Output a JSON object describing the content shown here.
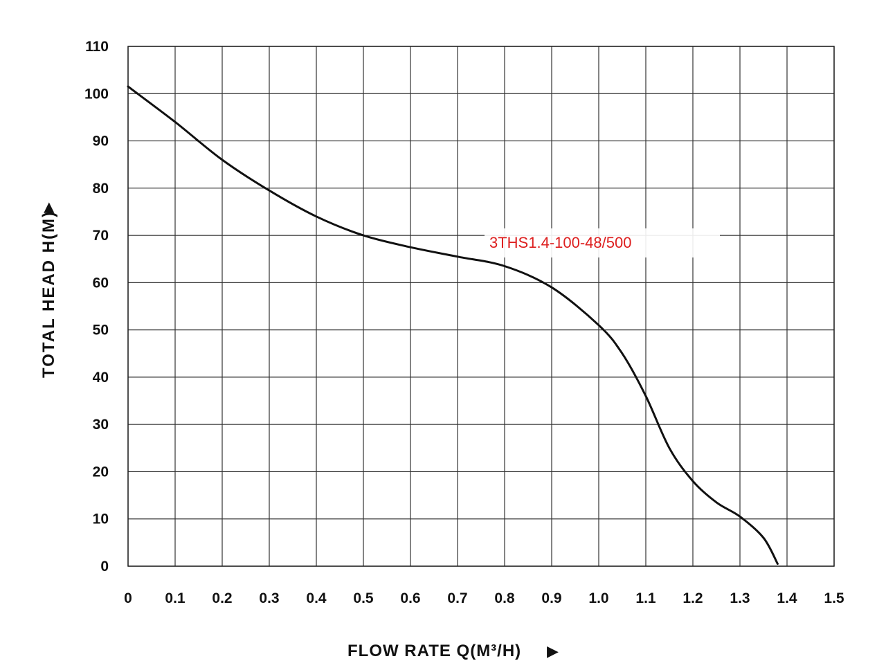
{
  "chart_data": {
    "type": "line",
    "title": "",
    "xlabel": "FLOW RATE Q(M³/H)",
    "ylabel": "TOTAL HEAD H(M)",
    "xlim": [
      0,
      1.5
    ],
    "ylim": [
      0,
      110
    ],
    "x_ticks": [
      "0",
      "0.1",
      "0.2",
      "0.3",
      "0.4",
      "0.5",
      "0.6",
      "0.7",
      "0.8",
      "0.9",
      "1.0",
      "1.1",
      "1.2",
      "1.3",
      "1.4",
      "1.5"
    ],
    "y_ticks": [
      "0",
      "10",
      "20",
      "30",
      "40",
      "50",
      "60",
      "70",
      "80",
      "90",
      "100",
      "110"
    ],
    "grid": true,
    "axis_arrow_glyph": "▶",
    "series": [
      {
        "name": "3THS1.4-100-48/500",
        "color": "#111111",
        "label_color": "#dd1f1f",
        "x": [
          0,
          0.1,
          0.2,
          0.3,
          0.4,
          0.5,
          0.6,
          0.7,
          0.8,
          0.9,
          1.0,
          1.05,
          1.1,
          1.15,
          1.2,
          1.25,
          1.3,
          1.35,
          1.38
        ],
        "y": [
          101.5,
          94,
          86,
          79.5,
          74,
          70,
          67.5,
          65.5,
          63.5,
          59,
          51,
          45,
          36,
          25,
          18,
          13.5,
          10.5,
          6,
          0.5
        ]
      }
    ]
  }
}
